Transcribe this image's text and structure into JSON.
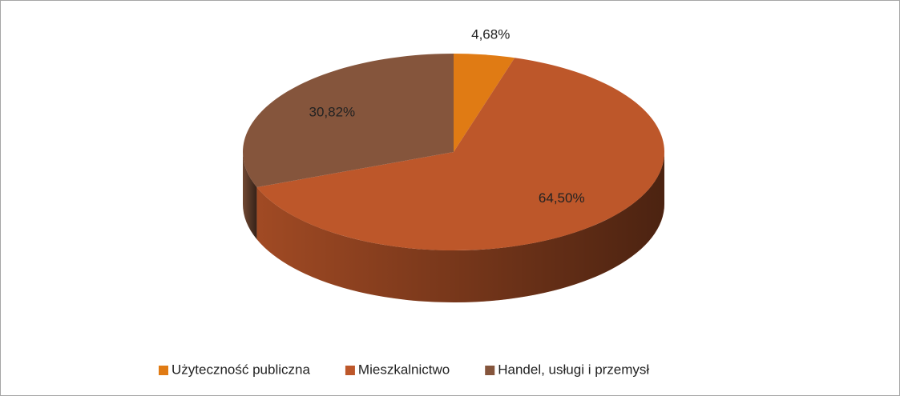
{
  "chart_data": {
    "type": "pie3d",
    "categories": [
      "Użyteczność publiczna",
      "Mieszkalnictwo",
      "Handel, usługi i przemysł"
    ],
    "values": [
      4.68,
      64.5,
      30.82
    ],
    "value_labels": [
      "4,68%",
      "64,50%",
      "30,82%"
    ],
    "colors": [
      "#e07b14",
      "#bd572a",
      "#85553c"
    ],
    "legend": "bottom"
  }
}
